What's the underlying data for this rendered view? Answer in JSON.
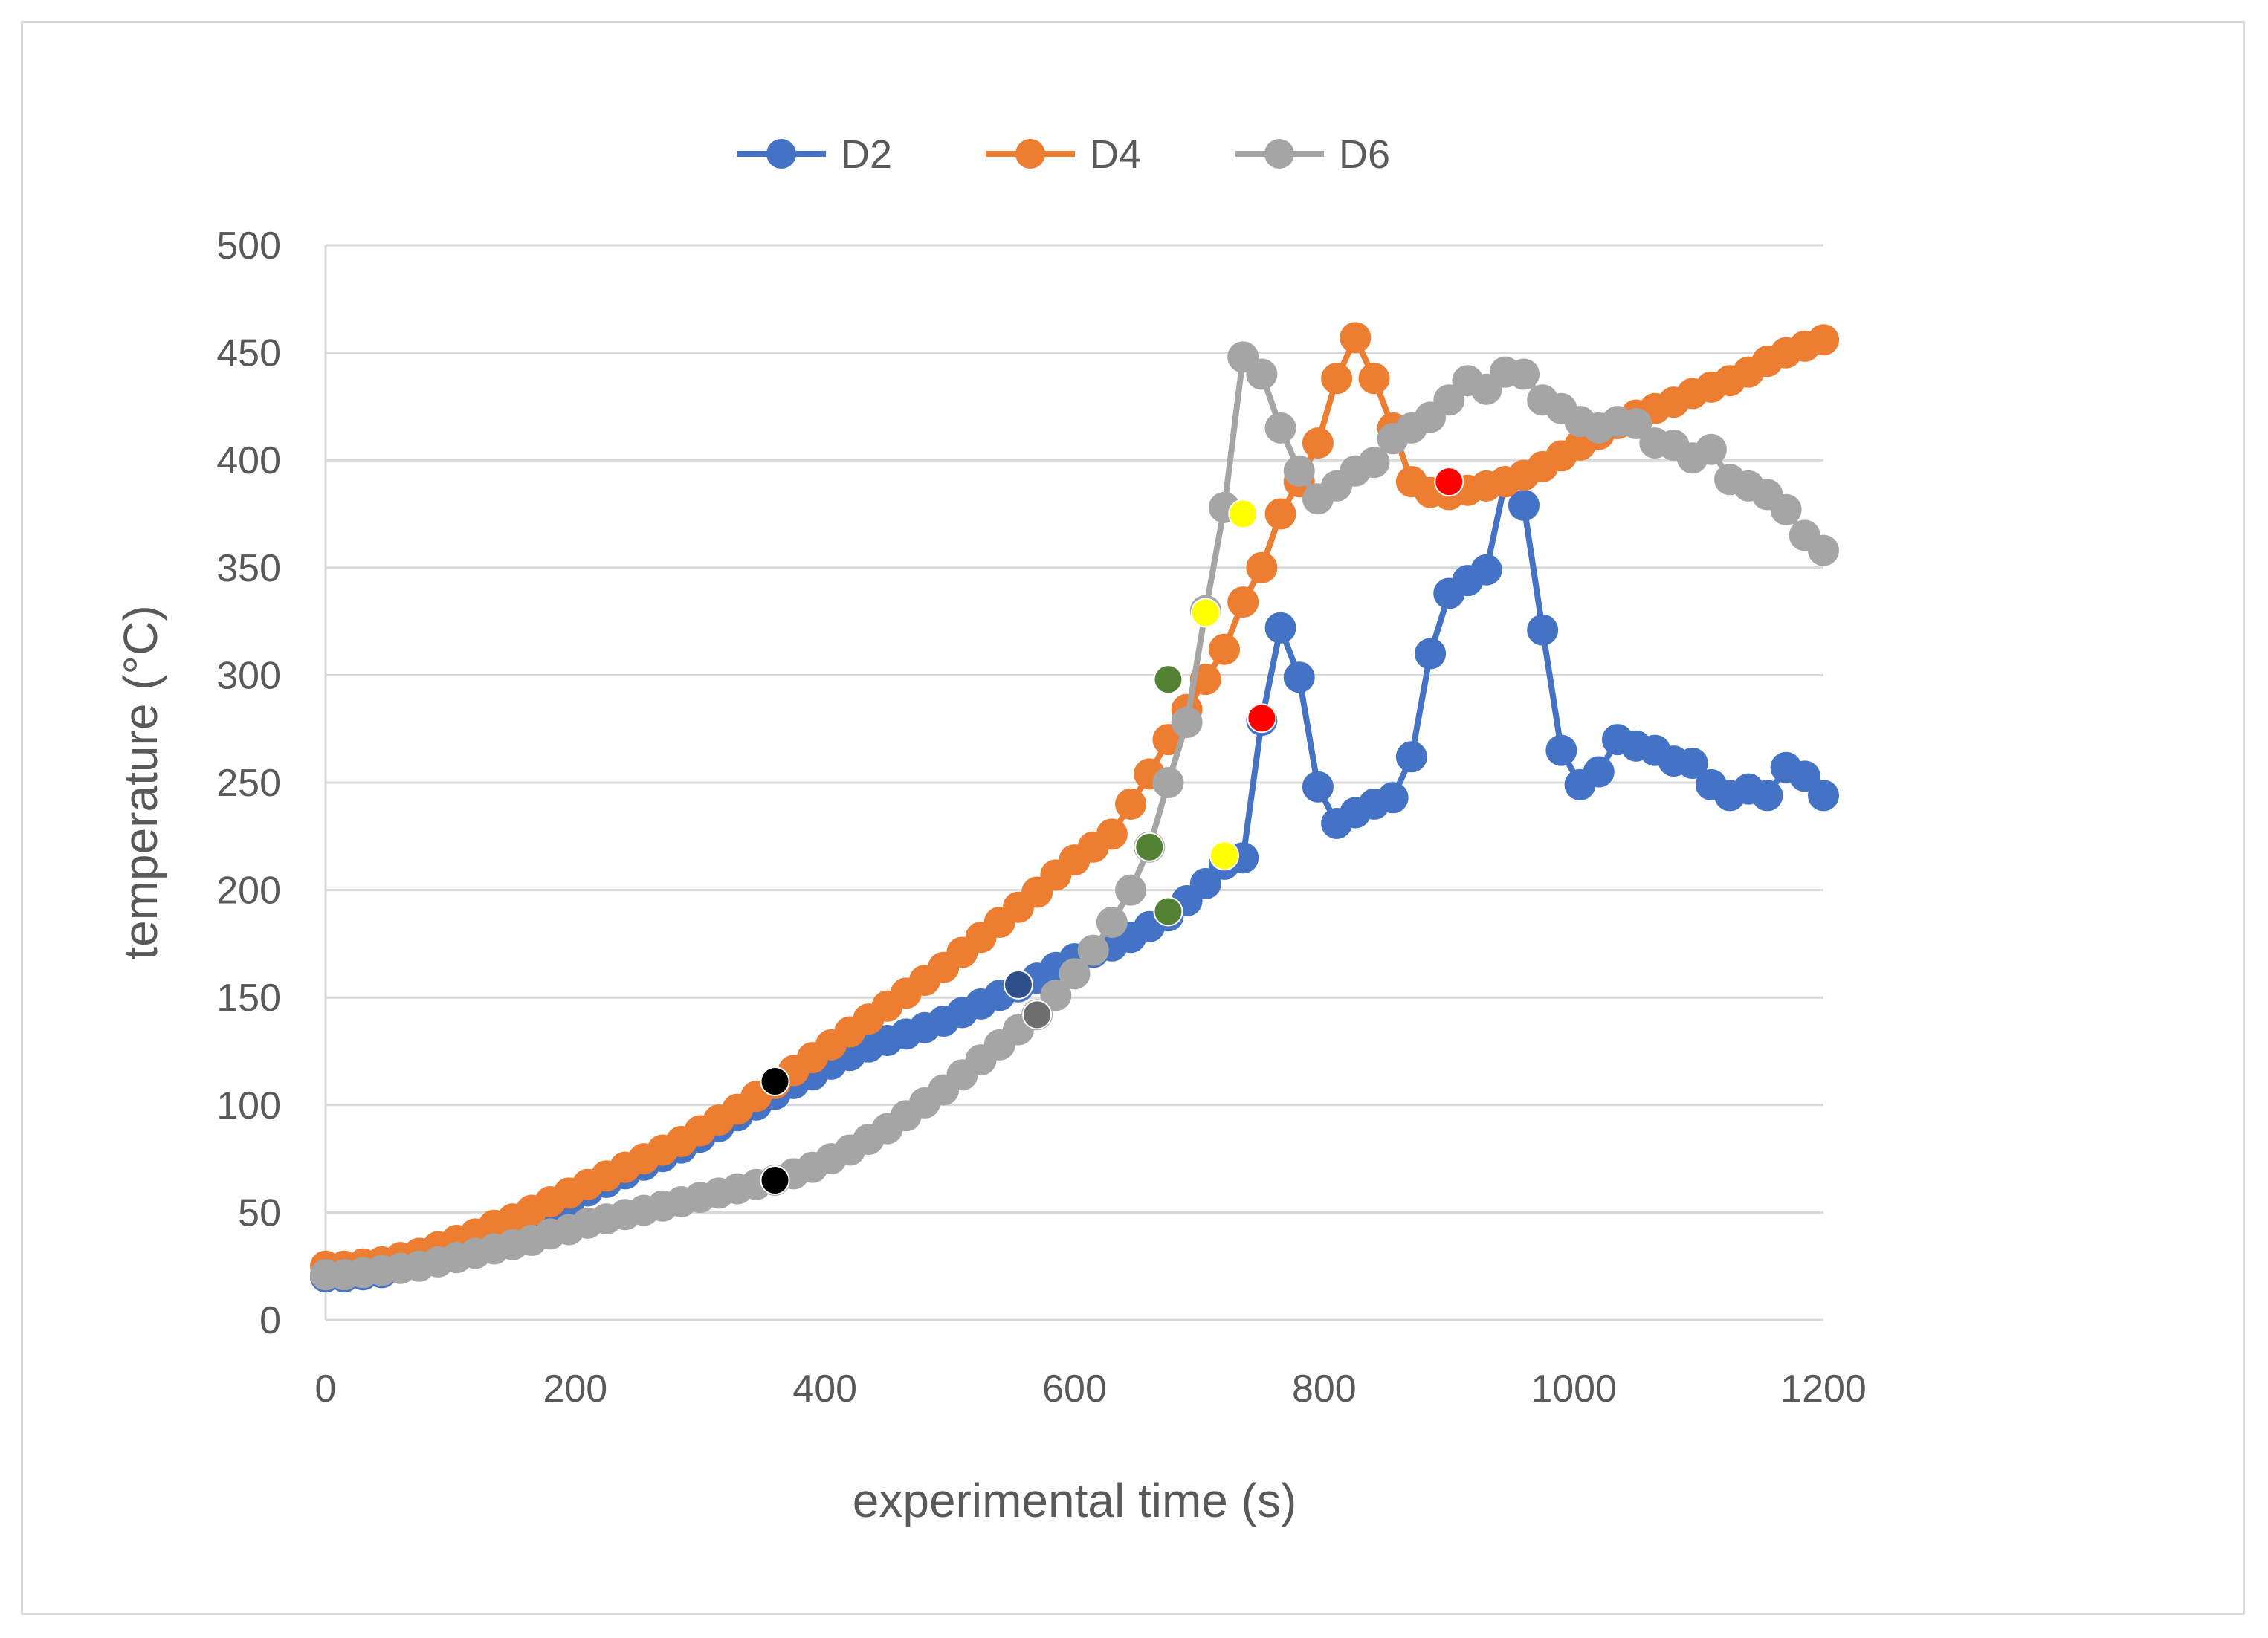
{
  "chart_data": {
    "type": "line",
    "title": "",
    "xlabel": "experimental time (s)",
    "ylabel": "temperature (°C)",
    "xlim": [
      0,
      1200
    ],
    "ylim": [
      0,
      500
    ],
    "x_ticks": [
      0,
      200,
      400,
      600,
      800,
      1000,
      1200
    ],
    "y_ticks": [
      0,
      50,
      100,
      150,
      200,
      250,
      300,
      350,
      400,
      450,
      500
    ],
    "grid": "horizontal",
    "legend_position": "top-center",
    "series": [
      {
        "name": "D2",
        "color": "#4472c4",
        "points": [
          [
            0,
            20
          ],
          [
            15,
            20
          ],
          [
            30,
            21
          ],
          [
            45,
            22
          ],
          [
            60,
            24
          ],
          [
            75,
            26
          ],
          [
            90,
            29
          ],
          [
            105,
            32
          ],
          [
            120,
            35
          ],
          [
            135,
            39
          ],
          [
            150,
            43
          ],
          [
            165,
            47
          ],
          [
            180,
            51
          ],
          [
            195,
            55
          ],
          [
            210,
            60
          ],
          [
            225,
            64
          ],
          [
            240,
            68
          ],
          [
            255,
            72
          ],
          [
            270,
            76
          ],
          [
            285,
            80
          ],
          [
            300,
            85
          ],
          [
            315,
            90
          ],
          [
            330,
            95
          ],
          [
            345,
            100
          ],
          [
            360,
            105
          ],
          [
            375,
            110
          ],
          [
            390,
            114
          ],
          [
            405,
            119
          ],
          [
            420,
            123
          ],
          [
            435,
            127
          ],
          [
            450,
            130
          ],
          [
            465,
            133
          ],
          [
            480,
            136
          ],
          [
            495,
            139
          ],
          [
            510,
            143
          ],
          [
            525,
            147
          ],
          [
            540,
            151
          ],
          [
            555,
            155
          ],
          [
            570,
            159
          ],
          [
            585,
            164
          ],
          [
            600,
            168
          ],
          [
            615,
            171
          ],
          [
            630,
            174
          ],
          [
            645,
            178
          ],
          [
            660,
            183
          ],
          [
            675,
            188
          ],
          [
            690,
            195
          ],
          [
            705,
            203
          ],
          [
            720,
            212
          ],
          [
            735,
            215
          ],
          [
            750,
            279
          ],
          [
            765,
            322
          ],
          [
            780,
            299
          ],
          [
            795,
            248
          ],
          [
            810,
            231
          ],
          [
            825,
            236
          ],
          [
            840,
            240
          ],
          [
            855,
            243
          ],
          [
            870,
            262
          ],
          [
            885,
            310
          ],
          [
            900,
            338
          ],
          [
            915,
            344
          ],
          [
            930,
            349
          ],
          [
            945,
            390
          ],
          [
            960,
            379
          ],
          [
            975,
            321
          ],
          [
            990,
            265
          ],
          [
            1005,
            249
          ],
          [
            1020,
            255
          ],
          [
            1035,
            270
          ],
          [
            1050,
            267
          ],
          [
            1065,
            265
          ],
          [
            1080,
            260
          ],
          [
            1095,
            259
          ],
          [
            1110,
            249
          ],
          [
            1125,
            244
          ],
          [
            1140,
            247
          ],
          [
            1155,
            244
          ],
          [
            1170,
            257
          ],
          [
            1185,
            253
          ],
          [
            1200,
            244
          ]
        ]
      },
      {
        "name": "D4",
        "color": "#ed7d31",
        "points": [
          [
            0,
            25
          ],
          [
            15,
            25
          ],
          [
            30,
            26
          ],
          [
            45,
            27
          ],
          [
            60,
            29
          ],
          [
            75,
            31
          ],
          [
            90,
            34
          ],
          [
            105,
            37
          ],
          [
            120,
            40
          ],
          [
            135,
            44
          ],
          [
            150,
            47
          ],
          [
            165,
            51
          ],
          [
            180,
            55
          ],
          [
            195,
            59
          ],
          [
            210,
            63
          ],
          [
            225,
            67
          ],
          [
            240,
            71
          ],
          [
            255,
            75
          ],
          [
            270,
            79
          ],
          [
            285,
            83
          ],
          [
            300,
            88
          ],
          [
            315,
            93
          ],
          [
            330,
            98
          ],
          [
            345,
            104
          ],
          [
            360,
            110
          ],
          [
            375,
            116
          ],
          [
            390,
            122
          ],
          [
            405,
            128
          ],
          [
            420,
            134
          ],
          [
            435,
            140
          ],
          [
            450,
            146
          ],
          [
            465,
            152
          ],
          [
            480,
            158
          ],
          [
            495,
            164
          ],
          [
            510,
            171
          ],
          [
            525,
            178
          ],
          [
            540,
            185
          ],
          [
            555,
            192
          ],
          [
            570,
            199
          ],
          [
            585,
            207
          ],
          [
            600,
            214
          ],
          [
            615,
            220
          ],
          [
            630,
            226
          ],
          [
            645,
            240
          ],
          [
            660,
            254
          ],
          [
            675,
            270
          ],
          [
            690,
            284
          ],
          [
            705,
            298
          ],
          [
            720,
            312
          ],
          [
            735,
            334
          ],
          [
            750,
            350
          ],
          [
            765,
            375
          ],
          [
            780,
            390
          ],
          [
            795,
            408
          ],
          [
            810,
            438
          ],
          [
            825,
            457
          ],
          [
            840,
            438
          ],
          [
            855,
            415
          ],
          [
            870,
            390
          ],
          [
            885,
            385
          ],
          [
            900,
            384
          ],
          [
            915,
            386
          ],
          [
            930,
            388
          ],
          [
            945,
            390
          ],
          [
            960,
            393
          ],
          [
            975,
            397
          ],
          [
            990,
            402
          ],
          [
            1005,
            407
          ],
          [
            1020,
            412
          ],
          [
            1035,
            417
          ],
          [
            1050,
            421
          ],
          [
            1065,
            424
          ],
          [
            1080,
            427
          ],
          [
            1095,
            431
          ],
          [
            1110,
            434
          ],
          [
            1125,
            437
          ],
          [
            1140,
            441
          ],
          [
            1155,
            446
          ],
          [
            1170,
            450
          ],
          [
            1185,
            453
          ],
          [
            1200,
            456
          ]
        ]
      },
      {
        "name": "D6",
        "color": "#a5a5a5",
        "points": [
          [
            0,
            21
          ],
          [
            15,
            21
          ],
          [
            30,
            22
          ],
          [
            45,
            23
          ],
          [
            60,
            24
          ],
          [
            75,
            25
          ],
          [
            90,
            27
          ],
          [
            105,
            29
          ],
          [
            120,
            31
          ],
          [
            135,
            33
          ],
          [
            150,
            35
          ],
          [
            165,
            37
          ],
          [
            180,
            40
          ],
          [
            195,
            42
          ],
          [
            210,
            45
          ],
          [
            225,
            47
          ],
          [
            240,
            49
          ],
          [
            255,
            51
          ],
          [
            270,
            53
          ],
          [
            285,
            55
          ],
          [
            300,
            57
          ],
          [
            315,
            59
          ],
          [
            330,
            61
          ],
          [
            345,
            63
          ],
          [
            360,
            65
          ],
          [
            375,
            68
          ],
          [
            390,
            71
          ],
          [
            405,
            75
          ],
          [
            420,
            79
          ],
          [
            435,
            84
          ],
          [
            450,
            89
          ],
          [
            465,
            95
          ],
          [
            480,
            101
          ],
          [
            495,
            107
          ],
          [
            510,
            114
          ],
          [
            525,
            121
          ],
          [
            540,
            128
          ],
          [
            555,
            135
          ],
          [
            570,
            142
          ],
          [
            585,
            151
          ],
          [
            600,
            161
          ],
          [
            615,
            172
          ],
          [
            630,
            185
          ],
          [
            645,
            200
          ],
          [
            660,
            220
          ],
          [
            675,
            250
          ],
          [
            690,
            278
          ],
          [
            705,
            330
          ],
          [
            720,
            378
          ],
          [
            735,
            448
          ],
          [
            750,
            440
          ],
          [
            765,
            415
          ],
          [
            780,
            395
          ],
          [
            795,
            382
          ],
          [
            810,
            388
          ],
          [
            825,
            395
          ],
          [
            840,
            399
          ],
          [
            855,
            410
          ],
          [
            870,
            415
          ],
          [
            885,
            420
          ],
          [
            900,
            428
          ],
          [
            915,
            437
          ],
          [
            930,
            433
          ],
          [
            945,
            441
          ],
          [
            960,
            440
          ],
          [
            975,
            428
          ],
          [
            990,
            424
          ],
          [
            1005,
            418
          ],
          [
            1020,
            415
          ],
          [
            1035,
            418
          ],
          [
            1050,
            417
          ],
          [
            1065,
            408
          ],
          [
            1080,
            407
          ],
          [
            1095,
            401
          ],
          [
            1110,
            405
          ],
          [
            1125,
            391
          ],
          [
            1140,
            388
          ],
          [
            1155,
            384
          ],
          [
            1170,
            377
          ],
          [
            1185,
            365
          ],
          [
            1200,
            358
          ]
        ]
      }
    ],
    "highlight_markers": [
      {
        "x": 360,
        "y": 111,
        "color": "#000000"
      },
      {
        "x": 360,
        "y": 65,
        "color": "#000000"
      },
      {
        "x": 555,
        "y": 156,
        "color": "#2e4f8a"
      },
      {
        "x": 570,
        "y": 142,
        "color": "#6e6e6e"
      },
      {
        "x": 660,
        "y": 220,
        "color": "#548235"
      },
      {
        "x": 675,
        "y": 190,
        "color": "#548235"
      },
      {
        "x": 675,
        "y": 298,
        "color": "#548235"
      },
      {
        "x": 705,
        "y": 329,
        "color": "#ffff00"
      },
      {
        "x": 720,
        "y": 216,
        "color": "#ffff00"
      },
      {
        "x": 735,
        "y": 375,
        "color": "#ffff00"
      },
      {
        "x": 750,
        "y": 280,
        "color": "#ff0000"
      },
      {
        "x": 900,
        "y": 390,
        "color": "#ff0000"
      }
    ]
  }
}
